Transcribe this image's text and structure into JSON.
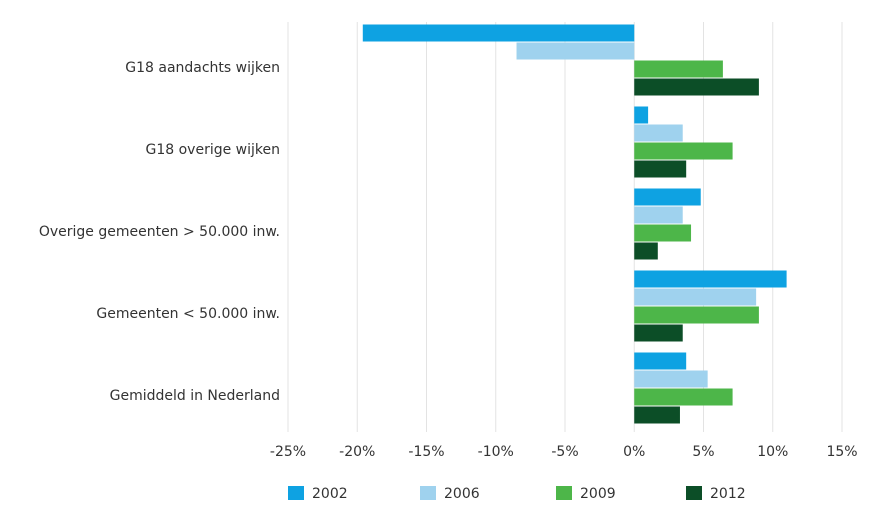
{
  "chart_data": {
    "type": "bar",
    "orientation": "horizontal",
    "categories": [
      "G18 aandachts wijken",
      "G18 overige wijken",
      "Overige gemeenten > 50.000 inw.",
      "Gemeenten < 50.000 inw.",
      "Gemiddeld in Nederland"
    ],
    "series": [
      {
        "name": "2002",
        "color": "#0ea2e2",
        "values": [
          -19.6,
          1.0,
          4.8,
          11.0,
          3.75
        ]
      },
      {
        "name": "2006",
        "color": "#9fd2ee",
        "values": [
          -8.5,
          3.5,
          3.5,
          8.8,
          5.3
        ]
      },
      {
        "name": "2009",
        "color": "#4db649",
        "values": [
          6.4,
          7.1,
          4.1,
          9.0,
          7.1
        ]
      },
      {
        "name": "2012",
        "color": "#0c4e27",
        "values": [
          9.0,
          3.75,
          1.7,
          3.5,
          3.3
        ]
      }
    ],
    "xlim": [
      -25,
      15
    ],
    "xticks": [
      {
        "value": -25,
        "label": "-25%"
      },
      {
        "value": -20,
        "label": "-20%"
      },
      {
        "value": -15,
        "label": "-15%"
      },
      {
        "value": -10,
        "label": "-10%"
      },
      {
        "value": -5,
        "label": "-5%"
      },
      {
        "value": 0,
        "label": "0%"
      },
      {
        "value": 5,
        "label": "5%"
      },
      {
        "value": 10,
        "label": "10%"
      },
      {
        "value": 15,
        "label": "15%"
      }
    ],
    "grid": true,
    "legend": "bottom"
  }
}
